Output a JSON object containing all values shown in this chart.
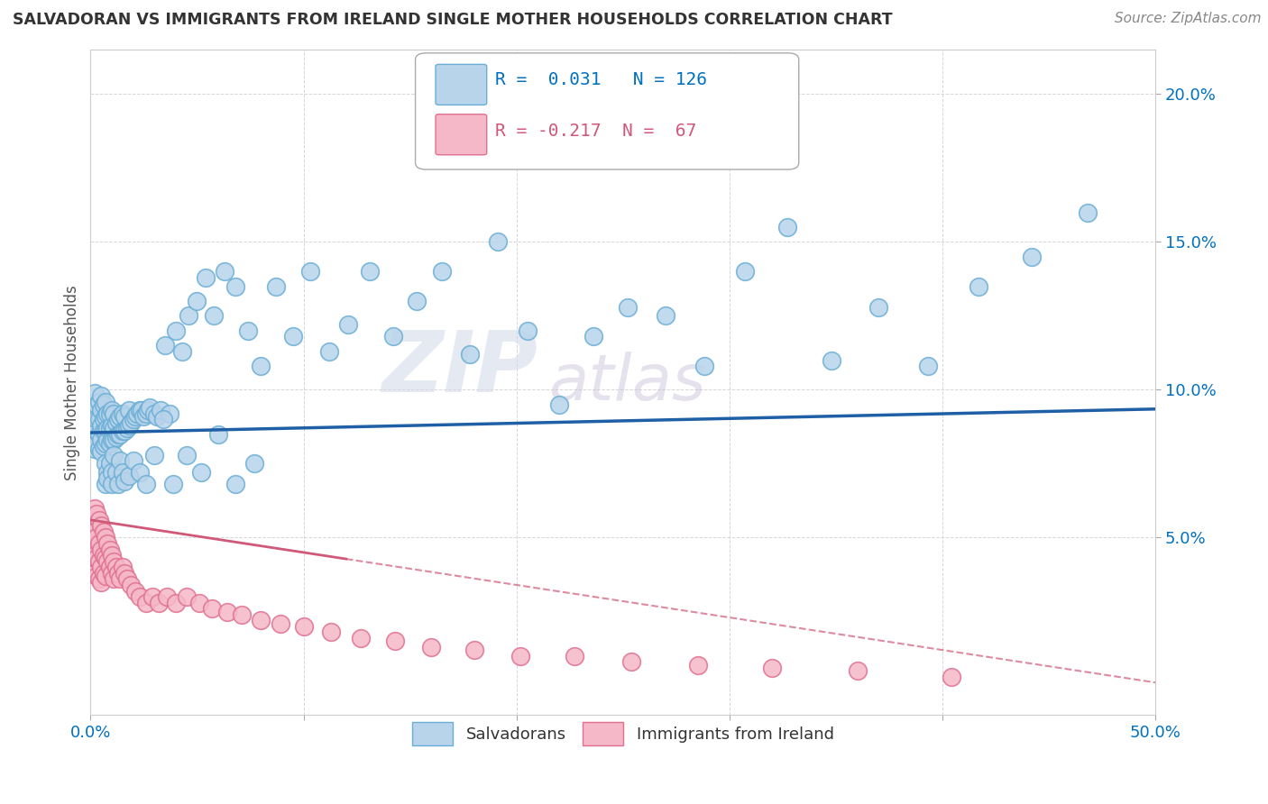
{
  "title": "SALVADORAN VS IMMIGRANTS FROM IRELAND SINGLE MOTHER HOUSEHOLDS CORRELATION CHART",
  "source": "Source: ZipAtlas.com",
  "ylabel": "Single Mother Households",
  "xlim": [
    0.0,
    0.5
  ],
  "ylim": [
    -0.01,
    0.215
  ],
  "xticks": [
    0.0,
    0.1,
    0.2,
    0.3,
    0.4,
    0.5
  ],
  "xticklabels": [
    "0.0%",
    "",
    "",
    "",
    "",
    "50.0%"
  ],
  "yticks": [
    0.05,
    0.1,
    0.15,
    0.2
  ],
  "yticklabels": [
    "5.0%",
    "10.0%",
    "15.0%",
    "20.0%"
  ],
  "series1_color": "#b8d4ea",
  "series1_edge": "#6aaed6",
  "series2_color": "#f5b8c8",
  "series2_edge": "#e07090",
  "trend1_color": "#1f5fa6",
  "trend2_color": "#d05878",
  "R1": 0.031,
  "N1": 126,
  "R2": -0.217,
  "N2": 67,
  "legend_R1_color": "#0070c0",
  "legend_R2_color": "#d05878",
  "watermark_zip": "ZIP",
  "watermark_atlas": "atlas",
  "background_color": "#ffffff",
  "grid_color": "#cccccc",
  "trend1_intercept": 0.0855,
  "trend1_slope": 0.016,
  "trend2_intercept": 0.056,
  "trend2_slope": -0.11,
  "trend2_solid_end": 0.12,
  "s1x": [
    0.001,
    0.001,
    0.002,
    0.002,
    0.002,
    0.002,
    0.003,
    0.003,
    0.003,
    0.003,
    0.004,
    0.004,
    0.004,
    0.004,
    0.005,
    0.005,
    0.005,
    0.005,
    0.005,
    0.006,
    0.006,
    0.006,
    0.006,
    0.007,
    0.007,
    0.007,
    0.007,
    0.008,
    0.008,
    0.008,
    0.009,
    0.009,
    0.009,
    0.01,
    0.01,
    0.01,
    0.011,
    0.011,
    0.011,
    0.012,
    0.012,
    0.013,
    0.013,
    0.014,
    0.014,
    0.015,
    0.015,
    0.016,
    0.016,
    0.017,
    0.018,
    0.018,
    0.019,
    0.02,
    0.021,
    0.022,
    0.023,
    0.024,
    0.025,
    0.026,
    0.027,
    0.028,
    0.03,
    0.031,
    0.033,
    0.035,
    0.037,
    0.04,
    0.043,
    0.046,
    0.05,
    0.054,
    0.058,
    0.063,
    0.068,
    0.074,
    0.08,
    0.087,
    0.095,
    0.103,
    0.112,
    0.121,
    0.131,
    0.142,
    0.153,
    0.165,
    0.178,
    0.191,
    0.205,
    0.22,
    0.236,
    0.252,
    0.27,
    0.288,
    0.307,
    0.327,
    0.348,
    0.37,
    0.393,
    0.417,
    0.442,
    0.468,
    0.007,
    0.007,
    0.008,
    0.008,
    0.009,
    0.01,
    0.01,
    0.011,
    0.012,
    0.013,
    0.014,
    0.015,
    0.016,
    0.018,
    0.02,
    0.023,
    0.026,
    0.03,
    0.034,
    0.039,
    0.045,
    0.052,
    0.06,
    0.068,
    0.077
  ],
  "s1y": [
    0.085,
    0.092,
    0.08,
    0.088,
    0.093,
    0.099,
    0.082,
    0.086,
    0.09,
    0.095,
    0.08,
    0.085,
    0.09,
    0.096,
    0.079,
    0.083,
    0.088,
    0.093,
    0.098,
    0.081,
    0.086,
    0.09,
    0.095,
    0.082,
    0.086,
    0.091,
    0.096,
    0.083,
    0.087,
    0.092,
    0.082,
    0.087,
    0.092,
    0.083,
    0.088,
    0.093,
    0.083,
    0.087,
    0.092,
    0.084,
    0.089,
    0.085,
    0.09,
    0.085,
    0.091,
    0.086,
    0.092,
    0.086,
    0.091,
    0.087,
    0.088,
    0.093,
    0.089,
    0.09,
    0.091,
    0.092,
    0.093,
    0.093,
    0.091,
    0.092,
    0.093,
    0.094,
    0.092,
    0.091,
    0.093,
    0.115,
    0.092,
    0.12,
    0.113,
    0.125,
    0.13,
    0.138,
    0.125,
    0.14,
    0.135,
    0.12,
    0.108,
    0.135,
    0.118,
    0.14,
    0.113,
    0.122,
    0.14,
    0.118,
    0.13,
    0.14,
    0.112,
    0.15,
    0.12,
    0.095,
    0.118,
    0.128,
    0.125,
    0.108,
    0.14,
    0.155,
    0.11,
    0.128,
    0.108,
    0.135,
    0.145,
    0.16,
    0.075,
    0.068,
    0.072,
    0.07,
    0.075,
    0.072,
    0.068,
    0.078,
    0.072,
    0.068,
    0.076,
    0.072,
    0.069,
    0.071,
    0.076,
    0.072,
    0.068,
    0.078,
    0.09,
    0.068,
    0.078,
    0.072,
    0.085,
    0.068,
    0.075
  ],
  "s2x": [
    0.001,
    0.001,
    0.001,
    0.002,
    0.002,
    0.002,
    0.002,
    0.003,
    0.003,
    0.003,
    0.003,
    0.004,
    0.004,
    0.004,
    0.004,
    0.005,
    0.005,
    0.005,
    0.005,
    0.006,
    0.006,
    0.006,
    0.007,
    0.007,
    0.007,
    0.008,
    0.008,
    0.009,
    0.009,
    0.01,
    0.01,
    0.011,
    0.011,
    0.012,
    0.013,
    0.014,
    0.015,
    0.016,
    0.017,
    0.019,
    0.021,
    0.023,
    0.026,
    0.029,
    0.032,
    0.036,
    0.04,
    0.045,
    0.051,
    0.057,
    0.064,
    0.071,
    0.08,
    0.089,
    0.1,
    0.113,
    0.127,
    0.143,
    0.16,
    0.18,
    0.202,
    0.227,
    0.254,
    0.285,
    0.32,
    0.36,
    0.404
  ],
  "s2y": [
    0.056,
    0.048,
    0.043,
    0.06,
    0.052,
    0.044,
    0.038,
    0.058,
    0.05,
    0.043,
    0.037,
    0.056,
    0.048,
    0.042,
    0.036,
    0.054,
    0.046,
    0.04,
    0.035,
    0.052,
    0.044,
    0.038,
    0.05,
    0.043,
    0.037,
    0.048,
    0.042,
    0.046,
    0.04,
    0.044,
    0.038,
    0.042,
    0.036,
    0.04,
    0.038,
    0.036,
    0.04,
    0.038,
    0.036,
    0.034,
    0.032,
    0.03,
    0.028,
    0.03,
    0.028,
    0.03,
    0.028,
    0.03,
    0.028,
    0.026,
    0.025,
    0.024,
    0.022,
    0.021,
    0.02,
    0.018,
    0.016,
    0.015,
    0.013,
    0.012,
    0.01,
    0.01,
    0.008,
    0.007,
    0.006,
    0.005,
    0.003
  ]
}
